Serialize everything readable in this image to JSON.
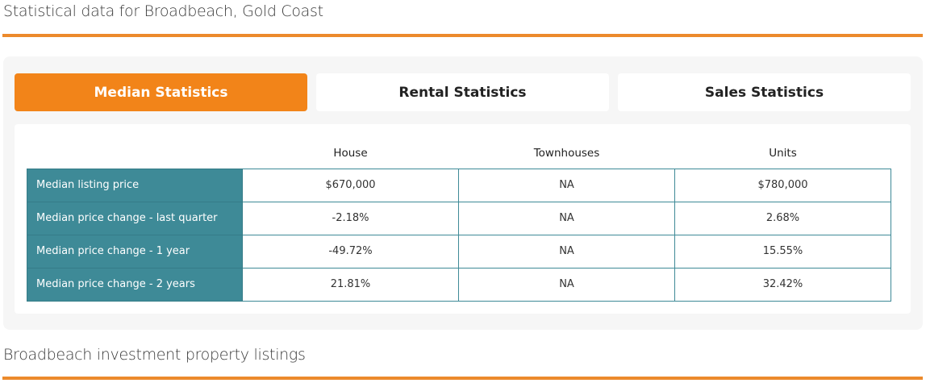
{
  "title": "Statistical data for Broadbeach, Gold Coast",
  "tabs": [
    {
      "label": "Median Statistics",
      "active": true
    },
    {
      "label": "Rental Statistics"
    },
    {
      "label": "Sales Statistics"
    }
  ],
  "table": {
    "headers": [
      "",
      "House",
      "Townhouses",
      "Units"
    ],
    "rows": [
      [
        "Median listing price",
        "$670,000",
        "NA",
        "$780,000"
      ],
      [
        "Median price change - last quarter",
        "-2.18%",
        "NA",
        "2.68%"
      ],
      [
        "Median price change - 1 year",
        "-49.72%",
        "NA",
        "15.55%"
      ],
      [
        "Median price change - 2 years",
        "21.81%",
        "NA",
        "32.42%"
      ]
    ]
  },
  "section2_title": "Broadbeach investment property listings",
  "colors": {
    "accent": "#f28419",
    "teal": "#3e8a97"
  }
}
